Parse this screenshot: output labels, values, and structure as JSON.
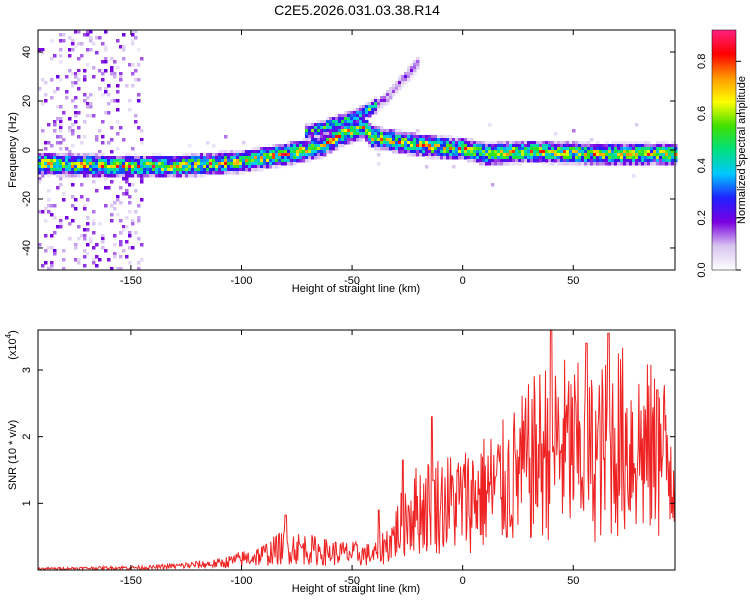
{
  "title": "C2E5.2026.031.03.38.R14",
  "colorbar_label": "Normalized spectral amplitude",
  "colors": {
    "snr_line": "#ee2222",
    "axis": "#000000"
  },
  "chart_data": [
    {
      "type": "heatmap",
      "name": "spectrogram",
      "xlabel": "Height of straight line (km)",
      "ylabel": "Frequency (Hz)",
      "xlim": [
        -192,
        96
      ],
      "ylim": [
        -49,
        49
      ],
      "x_ticks": [
        -150,
        -100,
        -50,
        0,
        50
      ],
      "y_ticks": [
        -40,
        -20,
        0,
        20,
        40
      ],
      "colorbar": {
        "range": [
          0,
          0.92
        ],
        "ticks": [
          0.0,
          0.2,
          0.4,
          0.6,
          0.8
        ],
        "colormap": [
          "#ffffff",
          "#d8c4f0",
          "#7a00e0",
          "#2020ff",
          "#00c8ff",
          "#00e080",
          "#40e000",
          "#ffff00",
          "#ff9900",
          "#ff0000",
          "#ff2080"
        ]
      },
      "ridge": [
        {
          "x": -190,
          "y": -5
        },
        {
          "x": -160,
          "y": -6
        },
        {
          "x": -130,
          "y": -6
        },
        {
          "x": -100,
          "y": -4
        },
        {
          "x": -80,
          "y": -1
        },
        {
          "x": -65,
          "y": 2
        },
        {
          "x": -55,
          "y": 7
        },
        {
          "x": -45,
          "y": 10
        },
        {
          "x": -42,
          "y": 6
        },
        {
          "x": -30,
          "y": 4
        },
        {
          "x": -15,
          "y": 2
        },
        {
          "x": 0,
          "y": 1
        },
        {
          "x": 10,
          "y": -1
        },
        {
          "x": 30,
          "y": 0
        },
        {
          "x": 60,
          "y": -1
        },
        {
          "x": 96,
          "y": -1
        }
      ],
      "branch": [
        {
          "x": -70,
          "y": 8
        },
        {
          "x": -60,
          "y": 11
        },
        {
          "x": -50,
          "y": 14
        },
        {
          "x": -43,
          "y": 17
        },
        {
          "x": -35,
          "y": 22
        },
        {
          "x": -25,
          "y": 32
        },
        {
          "x": -20,
          "y": 37
        }
      ],
      "noise_band": {
        "x_from": -192,
        "x_to": -145
      }
    },
    {
      "type": "line",
      "name": "snr",
      "xlabel": "Height of straight line (km)",
      "ylabel": "SNR (10 * v/v)",
      "y_multiplier": "(x10",
      "y_multiplier_exp": "4",
      "xlim": [
        -192,
        96
      ],
      "ylim": [
        0,
        3.6
      ],
      "x_ticks": [
        -150,
        -100,
        -50,
        0,
        50
      ],
      "y_ticks": [
        1,
        2,
        3
      ],
      "envelope": [
        {
          "x": -192,
          "y": 0.03
        },
        {
          "x": -140,
          "y": 0.06
        },
        {
          "x": -110,
          "y": 0.15
        },
        {
          "x": -90,
          "y": 0.35
        },
        {
          "x": -80,
          "y": 0.55
        },
        {
          "x": -60,
          "y": 0.4
        },
        {
          "x": -40,
          "y": 0.35
        },
        {
          "x": -32,
          "y": 0.7
        },
        {
          "x": -25,
          "y": 1.3
        },
        {
          "x": -15,
          "y": 1.5
        },
        {
          "x": 0,
          "y": 1.6
        },
        {
          "x": 20,
          "y": 2.0
        },
        {
          "x": 40,
          "y": 2.9
        },
        {
          "x": 60,
          "y": 2.6
        },
        {
          "x": 70,
          "y": 3.0
        },
        {
          "x": 96,
          "y": 2.5
        }
      ],
      "peaks": [
        {
          "x": -80,
          "y": 0.82
        },
        {
          "x": -38,
          "y": 0.9
        },
        {
          "x": -27,
          "y": 1.65
        },
        {
          "x": -14,
          "y": 2.3
        },
        {
          "x": 40,
          "y": 3.6
        },
        {
          "x": 56,
          "y": 3.4
        },
        {
          "x": 66,
          "y": 3.55
        },
        {
          "x": 88,
          "y": 2.7
        }
      ]
    }
  ]
}
